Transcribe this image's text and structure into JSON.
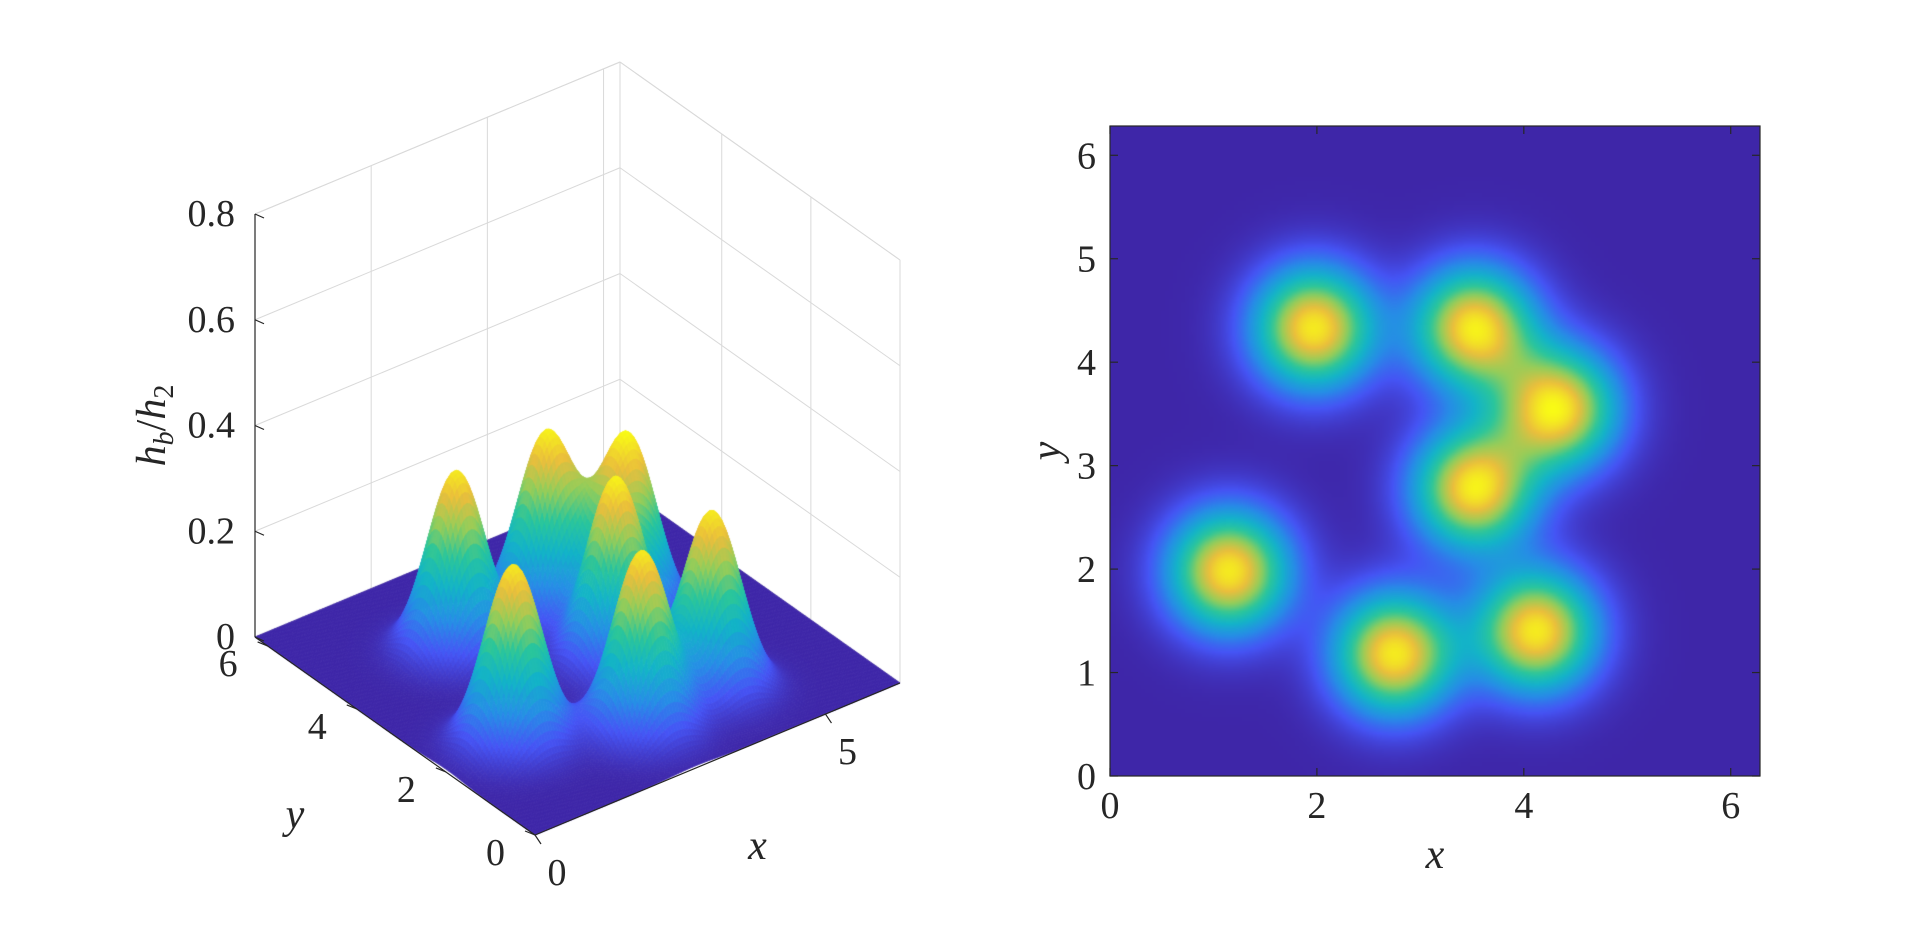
{
  "chart_data": [
    {
      "type": "surface3d",
      "title": "",
      "xlabel": "x",
      "ylabel": "y",
      "zlabel_main": "h",
      "zlabel_sub1": "b",
      "zlabel_sep": "/",
      "zlabel_main2": "h",
      "zlabel_sub2": "2",
      "x_ticks": [
        "0",
        "5"
      ],
      "y_ticks": [
        "0",
        "2",
        "4",
        "6"
      ],
      "z_ticks": [
        "0",
        "0.2",
        "0.4",
        "0.6",
        "0.8"
      ],
      "xlim": [
        0,
        6.283
      ],
      "ylim": [
        0,
        6.283
      ],
      "zlim": [
        0,
        0.8
      ],
      "grid": true,
      "colormap": "parula",
      "peak_height": 0.34,
      "peak_width": 0.4,
      "peaks": [
        {
          "x": 1.15,
          "y": 1.98
        },
        {
          "x": 1.97,
          "y": 4.33
        },
        {
          "x": 2.75,
          "y": 1.18
        },
        {
          "x": 3.52,
          "y": 4.33
        },
        {
          "x": 3.52,
          "y": 2.78
        },
        {
          "x": 4.12,
          "y": 1.4
        },
        {
          "x": 4.32,
          "y": 3.55
        }
      ]
    },
    {
      "type": "heatmap",
      "title": "",
      "xlabel": "x",
      "ylabel": "y",
      "x_ticks": [
        "0",
        "2",
        "4",
        "6"
      ],
      "y_ticks": [
        "0",
        "1",
        "2",
        "3",
        "4",
        "5",
        "6"
      ],
      "xlim": [
        0,
        6.283
      ],
      "ylim": [
        0,
        6.283
      ],
      "colormap": "parula",
      "same_field_as_left": true
    }
  ]
}
